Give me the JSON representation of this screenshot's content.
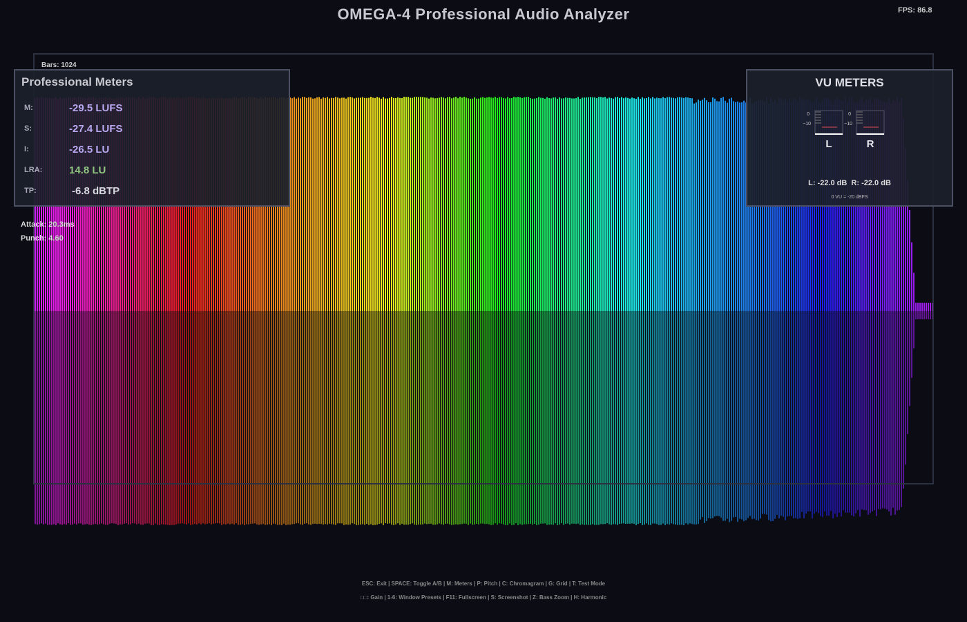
{
  "header": {
    "title": "OMEGA-4 Professional Audio Analyzer",
    "fps": "FPS: 86.8"
  },
  "spectrum": {
    "bars": "Bars: 1024"
  },
  "meters": {
    "title": "Professional Meters",
    "rows": [
      [
        "M:",
        "-29.5 LUFS"
      ],
      [
        "S:",
        "-27.4 LUFS"
      ],
      [
        "I:",
        "-26.5 LU"
      ],
      [
        "LRA:",
        "14.8 LU"
      ],
      [
        "TP:",
        "-6.8 dBTP"
      ]
    ]
  },
  "transient": {
    "attack": "Attack: 20.3ms",
    "punch": "Punch: 4.60"
  },
  "vu": {
    "title": "VU METERS",
    "scale_top": "0",
    "scale_bottom": "−10",
    "left": "L",
    "right": "R",
    "readout": "L: -22.0 dB  R: -22.0 dB",
    "reference": "0 VU = -20 dBFS"
  },
  "footer": {
    "line1": "ESC: Exit | SPACE: Toggle A/B | M: Meters | P: Pitch | C: Chromagram | G: Grid | T: Test Mode",
    "line2": "□□: Gain | 1-6: Window Presets | F11: Fullscreen | S: Screenshot | Z: Bass Zoom | H: Harmonic"
  }
}
